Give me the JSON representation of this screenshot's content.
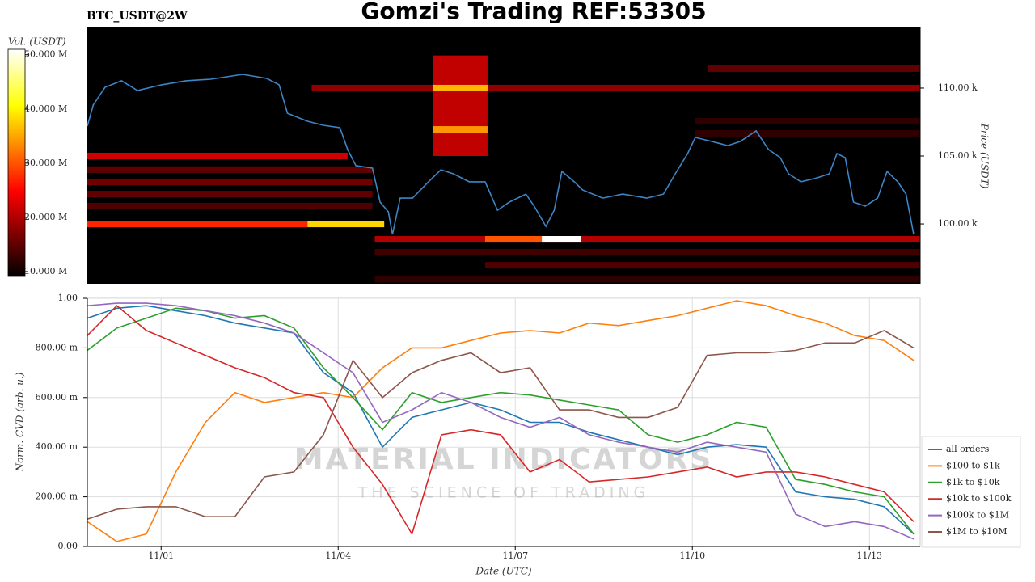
{
  "chart_data": [
    {
      "type": "heatmap",
      "title": "Gomzi's Trading REF:53305",
      "subtitle": "BTC_USDT@2W",
      "colorbar_label": "Vol. (USDT)",
      "colormap": "hot",
      "clim": [
        9.1,
        51
      ],
      "colorbar_ticks": [
        {
          "value": 10,
          "label": "10.000 M"
        },
        {
          "value": 20,
          "label": "20.000 M"
        },
        {
          "value": 30,
          "label": "30.000 M"
        },
        {
          "value": 40,
          "label": "40.000 M"
        },
        {
          "value": 50,
          "label": "50.000 M"
        }
      ],
      "y_label": "Price (USDT)",
      "xlim": [
        -0.25,
        13.86
      ],
      "ylim": [
        95600,
        114520
      ],
      "yticks": [
        {
          "value": 100000,
          "label": "100.00 k"
        },
        {
          "value": 105000,
          "label": "105.00 k"
        },
        {
          "value": 110000,
          "label": "110.00 k"
        }
      ],
      "cells": [
        {
          "x": [
            3.55,
            13.86
          ],
          "y": [
            109760,
            110240
          ],
          "v": 18
        },
        {
          "x": [
            -0.25,
            3.48
          ],
          "y": [
            99760,
            100240
          ],
          "v": 27
        },
        {
          "x": [
            3.48,
            4.78
          ],
          "y": [
            99760,
            100240
          ],
          "v": 38
        },
        {
          "x": [
            -0.25,
            4.16
          ],
          "y": [
            104760,
            105240
          ],
          "v": 22
        },
        {
          "x": [
            -0.25,
            4.58
          ],
          "y": [
            103760,
            104240
          ],
          "v": 15
        },
        {
          "x": [
            -0.25,
            4.58
          ],
          "y": [
            102860,
            103340
          ],
          "v": 16
        },
        {
          "x": [
            -0.25,
            4.58
          ],
          "y": [
            101960,
            102440
          ],
          "v": 15
        },
        {
          "x": [
            -0.25,
            4.58
          ],
          "y": [
            101070,
            101550
          ],
          "v": 14
        },
        {
          "x": [
            5.6,
            6.53
          ],
          "y": [
            105000,
            112400
          ],
          "v": 21
        },
        {
          "x": [
            5.6,
            6.53
          ],
          "y": [
            109760,
            110240
          ],
          "v": 36
        },
        {
          "x": [
            5.6,
            6.53
          ],
          "y": [
            106720,
            107200
          ],
          "v": 34
        },
        {
          "x": [
            10.26,
            13.86
          ],
          "y": [
            111190,
            111670
          ],
          "v": 15
        },
        {
          "x": [
            4.62,
            13.86
          ],
          "y": [
            98630,
            99110
          ],
          "v": 20
        },
        {
          "x": [
            6.49,
            7.45
          ],
          "y": [
            98630,
            99110
          ],
          "v": 30
        },
        {
          "x": [
            7.45,
            8.11
          ],
          "y": [
            98630,
            99110
          ],
          "v": 51
        },
        {
          "x": [
            4.62,
            13.86
          ],
          "y": [
            97680,
            98160
          ],
          "v": 13
        },
        {
          "x": [
            6.49,
            13.86
          ],
          "y": [
            96720,
            97200
          ],
          "v": 14
        },
        {
          "x": [
            4.62,
            13.86
          ],
          "y": [
            95700,
            96180
          ],
          "v": 12
        },
        {
          "x": [
            10.05,
            13.86
          ],
          "y": [
            107320,
            107800
          ],
          "v": 12
        },
        {
          "x": [
            10.05,
            13.86
          ],
          "y": [
            106430,
            106910
          ],
          "v": 12
        }
      ],
      "price": {
        "color": "#3d85c6",
        "x": [
          -0.25,
          -0.15,
          0.05,
          0.33,
          0.6,
          1.01,
          1.42,
          1.84,
          2.38,
          2.79,
          3.0,
          3.14,
          3.48,
          3.75,
          4.03,
          4.16,
          4.3,
          4.58,
          4.71,
          4.85,
          4.92,
          5.05,
          5.26,
          5.53,
          5.74,
          5.95,
          6.22,
          6.49,
          6.7,
          6.9,
          7.18,
          7.32,
          7.52,
          7.66,
          7.79,
          8.0,
          8.14,
          8.48,
          8.82,
          9.23,
          9.51,
          9.71,
          9.92,
          10.05,
          10.33,
          10.6,
          10.81,
          11.08,
          11.29,
          11.49,
          11.63,
          11.84,
          12.11,
          12.32,
          12.45,
          12.59,
          12.73,
          12.93,
          13.14,
          13.3,
          13.48,
          13.62,
          13.75
        ],
        "values": [
          107200,
          108750,
          110060,
          110540,
          109820,
          110240,
          110540,
          110650,
          111010,
          110710,
          110240,
          108150,
          107560,
          107260,
          107080,
          105480,
          104290,
          104110,
          101610,
          100890,
          99230,
          101900,
          101900,
          103100,
          103990,
          103690,
          103100,
          103100,
          101010,
          101610,
          102200,
          101310,
          99820,
          101010,
          103870,
          103100,
          102500,
          101900,
          102200,
          101900,
          102200,
          103690,
          105180,
          106370,
          106070,
          105770,
          106070,
          106850,
          105480,
          104880,
          103690,
          103100,
          103390,
          103690,
          105180,
          104880,
          101610,
          101310,
          101900,
          103870,
          103100,
          102200,
          99230
        ]
      }
    },
    {
      "type": "line",
      "x_label": "Date (UTC)",
      "y_label": "Norm. CVD (arb. u.)",
      "watermark_title": "MATERIAL INDICATORS",
      "watermark_subtitle": "THE SCIENCE OF TRADING",
      "grid": true,
      "legend": "right",
      "xlim": [
        -0.25,
        13.86
      ],
      "ylim": [
        0,
        1
      ],
      "xticks": [
        {
          "value": 1,
          "label": "11/01"
        },
        {
          "value": 4,
          "label": "11/04"
        },
        {
          "value": 7,
          "label": "11/07"
        },
        {
          "value": 10,
          "label": "11/10"
        },
        {
          "value": 13,
          "label": "11/13"
        }
      ],
      "yticks": [
        {
          "value": 0,
          "label": "0.00"
        },
        {
          "value": 0.2,
          "label": "200.00 m"
        },
        {
          "value": 0.4,
          "label": "400.00 m"
        },
        {
          "value": 0.6,
          "label": "600.00 m"
        },
        {
          "value": 0.8,
          "label": "800.00 m"
        },
        {
          "value": 1,
          "label": "1.00"
        }
      ],
      "x": [
        -0.25,
        0.25,
        0.75,
        1.25,
        1.75,
        2.25,
        2.75,
        3.25,
        3.75,
        4.25,
        4.75,
        5.25,
        5.75,
        6.25,
        6.75,
        7.25,
        7.75,
        8.25,
        8.75,
        9.25,
        9.75,
        10.25,
        10.75,
        11.25,
        11.75,
        12.25,
        12.75,
        13.25,
        13.75
      ],
      "series": [
        {
          "name": "all orders",
          "color": "#1f77b4",
          "values": [
            0.92,
            0.96,
            0.97,
            0.95,
            0.93,
            0.9,
            0.88,
            0.86,
            0.7,
            0.62,
            0.4,
            0.52,
            0.55,
            0.58,
            0.55,
            0.5,
            0.5,
            0.46,
            0.43,
            0.4,
            0.37,
            0.4,
            0.41,
            0.4,
            0.22,
            0.2,
            0.19,
            0.16,
            0.05
          ]
        },
        {
          "name": "$100 to $1k",
          "color": "#ff7f0e",
          "values": [
            0.1,
            0.02,
            0.05,
            0.3,
            0.5,
            0.62,
            0.58,
            0.6,
            0.62,
            0.6,
            0.72,
            0.8,
            0.8,
            0.83,
            0.86,
            0.87,
            0.86,
            0.9,
            0.89,
            0.91,
            0.93,
            0.96,
            0.99,
            0.97,
            0.93,
            0.9,
            0.85,
            0.83,
            0.75
          ]
        },
        {
          "name": "$1k to $10k",
          "color": "#2ca02c",
          "values": [
            0.79,
            0.88,
            0.92,
            0.96,
            0.95,
            0.92,
            0.93,
            0.88,
            0.72,
            0.6,
            0.47,
            0.62,
            0.58,
            0.6,
            0.62,
            0.61,
            0.59,
            0.57,
            0.55,
            0.45,
            0.42,
            0.45,
            0.5,
            0.48,
            0.27,
            0.25,
            0.22,
            0.2,
            0.05
          ]
        },
        {
          "name": "$10k to $100k",
          "color": "#d62728",
          "values": [
            0.85,
            0.97,
            0.87,
            0.82,
            0.77,
            0.72,
            0.68,
            0.62,
            0.6,
            0.4,
            0.25,
            0.05,
            0.45,
            0.47,
            0.45,
            0.3,
            0.35,
            0.26,
            0.27,
            0.28,
            0.3,
            0.32,
            0.28,
            0.3,
            0.3,
            0.28,
            0.25,
            0.22,
            0.1
          ]
        },
        {
          "name": "$100k to $1M",
          "color": "#9467bd",
          "values": [
            0.97,
            0.98,
            0.98,
            0.97,
            0.95,
            0.93,
            0.9,
            0.86,
            0.78,
            0.7,
            0.5,
            0.55,
            0.62,
            0.58,
            0.52,
            0.48,
            0.52,
            0.45,
            0.42,
            0.4,
            0.38,
            0.42,
            0.4,
            0.38,
            0.13,
            0.08,
            0.1,
            0.08,
            0.03
          ]
        },
        {
          "name": "$1M to $10M",
          "color": "#8c564b",
          "values": [
            0.11,
            0.15,
            0.16,
            0.16,
            0.12,
            0.12,
            0.28,
            0.3,
            0.45,
            0.75,
            0.6,
            0.7,
            0.75,
            0.78,
            0.7,
            0.72,
            0.55,
            0.55,
            0.52,
            0.52,
            0.56,
            0.77,
            0.78,
            0.78,
            0.79,
            0.82,
            0.82,
            0.87,
            0.8
          ]
        }
      ]
    }
  ]
}
